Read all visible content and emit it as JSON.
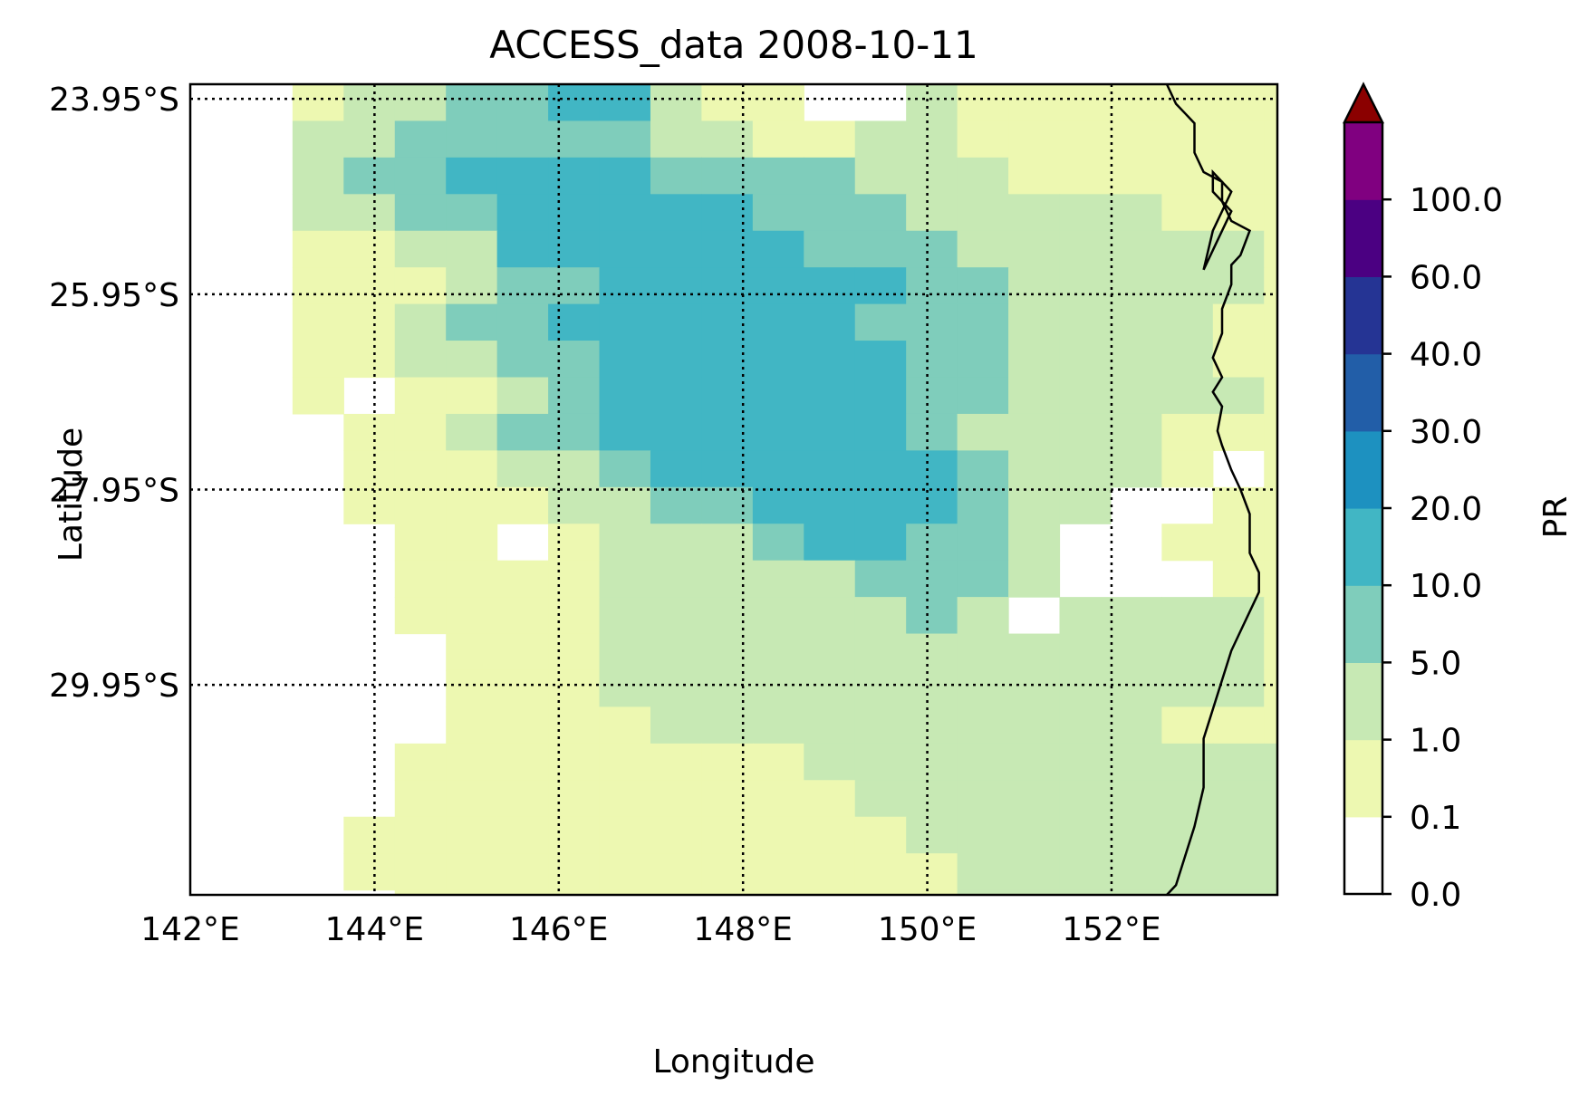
{
  "chart_data": {
    "type": "heatmap",
    "title": "ACCESS_data 2008-10-11",
    "xlabel": "Longitude",
    "ylabel": "Latitude",
    "x_ticks": [
      "142°E",
      "144°E",
      "146°E",
      "148°E",
      "150°E",
      "152°E"
    ],
    "x_tick_values": [
      142,
      144,
      146,
      148,
      150,
      152
    ],
    "y_ticks": [
      "23.95°S",
      "25.95°S",
      "27.95°S",
      "29.95°S"
    ],
    "y_tick_values": [
      -23.95,
      -25.95,
      -27.95,
      -29.95
    ],
    "xlim": [
      142.0,
      153.8
    ],
    "ylim": [
      -32.1,
      -23.8
    ],
    "grid": true,
    "grid_style": "dotted",
    "cell_size_deg": [
      0.555,
      0.375
    ],
    "colorbar": {
      "label": "PR",
      "bounds": [
        0.0,
        0.1,
        1.0,
        5.0,
        10.0,
        20.0,
        30.0,
        40.0,
        60.0,
        100.0
      ],
      "tick_labels": [
        "0.0",
        "0.1",
        "1.0",
        "5.0",
        "10.0",
        "20.0",
        "30.0",
        "40.0",
        "60.0",
        "100.0"
      ],
      "colors": [
        "#ffffff",
        "#edf8b1",
        "#c7e9b4",
        "#7fcdbb",
        "#41b6c4",
        "#1d91c0",
        "#225ea8",
        "#253494",
        "#4b0082",
        "#800080"
      ],
      "over_color": "#8b0000",
      "extend": "max"
    },
    "grid_rows": [
      "..1223344211..211111111",
      "..2233333221122111111111",
      "..2334444333322211111111",
      "..22334444433322222111111",
      "..11224444443332222221111",
      "..1112334444443322222111.",
      "..1123344444433322221111.",
      "..1122334444443322221111.",
      "..1.112344444433222221.11",
      "...1123344444432222111111",
      "...11122344444432221.1122",
      "...111122334444322..11222",
      "....11.1222344332..111222",
      "....1111222223332...11222",
      "....111122222232.2222122",
      ".....111222222222222212222",
      ".....111222222222222211222",
      ".....111122222222221112222",
      "....1111111122222222222222",
      "....1111111112222222222222",
      "...11111111111222222222222",
      "...1111111111112222222222",
      "....111111111112222222222",
      "....111111111112222222222",
      "....11111111111122222222",
      "....11111111111222222222",
      ".....1111111111222222222",
      ".....1111111111222222222",
      "......11111111112222222222"
    ],
    "coastline_lonlat": [
      [
        152.6,
        -23.8
      ],
      [
        152.7,
        -24.0
      ],
      [
        152.8,
        -24.1
      ],
      [
        152.9,
        -24.2
      ],
      [
        152.9,
        -24.5
      ],
      [
        153.0,
        -24.7
      ],
      [
        153.2,
        -24.8
      ],
      [
        153.2,
        -25.0
      ],
      [
        153.3,
        -25.2
      ],
      [
        153.5,
        -25.3
      ],
      [
        153.4,
        -25.55
      ],
      [
        153.3,
        -25.65
      ],
      [
        153.3,
        -25.85
      ],
      [
        153.2,
        -26.1
      ],
      [
        153.2,
        -26.35
      ],
      [
        153.1,
        -26.6
      ],
      [
        153.2,
        -26.8
      ],
      [
        153.1,
        -26.95
      ],
      [
        153.2,
        -27.1
      ],
      [
        153.15,
        -27.35
      ],
      [
        153.2,
        -27.5
      ],
      [
        153.3,
        -27.75
      ],
      [
        153.4,
        -27.95
      ],
      [
        153.5,
        -28.2
      ],
      [
        153.5,
        -28.6
      ],
      [
        153.6,
        -28.8
      ],
      [
        153.6,
        -29.0
      ],
      [
        153.4,
        -29.4
      ],
      [
        153.3,
        -29.6
      ],
      [
        153.2,
        -29.9
      ],
      [
        153.1,
        -30.2
      ],
      [
        153.0,
        -30.5
      ],
      [
        153.0,
        -31.0
      ],
      [
        152.9,
        -31.4
      ],
      [
        152.8,
        -31.7
      ],
      [
        152.7,
        -32.0
      ],
      [
        152.6,
        -32.1
      ]
    ],
    "island_lonlat": [
      [
        153.0,
        -25.7
      ],
      [
        153.1,
        -25.3
      ],
      [
        153.3,
        -24.9
      ],
      [
        153.1,
        -24.7
      ],
      [
        153.1,
        -24.9
      ],
      [
        153.2,
        -25.0
      ],
      [
        153.3,
        -25.1
      ],
      [
        153.1,
        -25.5
      ],
      [
        153.0,
        -25.7
      ]
    ]
  }
}
